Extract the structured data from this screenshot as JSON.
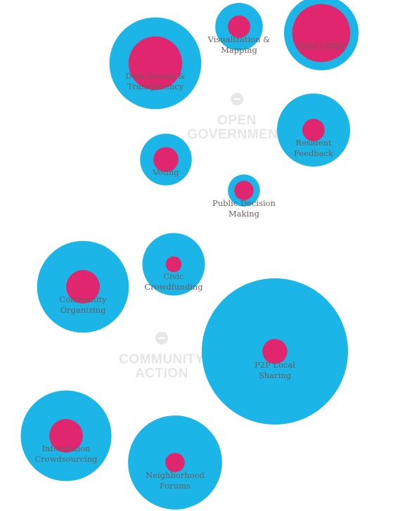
{
  "chart_data": {
    "type": "bubble",
    "colors": {
      "total": "#1bb5e8",
      "highlight": "#e0266f",
      "group_text": "#e6e6e6",
      "label_text": "#6b5d5d"
    },
    "groups": [
      {
        "name": "OPEN GOVERNMENT",
        "lines": [
          "OPEN",
          "GOVERNMENT"
        ]
      },
      {
        "name": "COMMUNITY ACTION",
        "lines": [
          "COMMUNITY",
          "ACTION"
        ]
      }
    ],
    "bubbles": [
      {
        "category": "Visualization & Mapping",
        "lines": [
          "Visualization &",
          "Mapping"
        ],
        "group": "OPEN GOVERNMENT",
        "total": 11,
        "highlight": 4
      },
      {
        "category": "Data Utility",
        "lines": [
          "Data Utility"
        ],
        "group": "OPEN GOVERNMENT",
        "total": 27,
        "highlight": 27
      },
      {
        "category": "Data Access & Transparency",
        "lines": [
          "Data Access &",
          "Transparency"
        ],
        "group": "OPEN GOVERNMENT",
        "total": 41,
        "highlight": 23
      },
      {
        "category": "Resident Feedback",
        "lines": [
          "Resident",
          "Feedback"
        ],
        "group": "OPEN GOVERNMENT",
        "total": 26,
        "highlight": 4
      },
      {
        "category": "Voting",
        "lines": [
          "Voting"
        ],
        "group": "OPEN GOVERNMENT",
        "total": 13,
        "highlight": 5
      },
      {
        "category": "Public Decision Making",
        "lines": [
          "Public Decision",
          "Making"
        ],
        "group": "OPEN GOVERNMENT",
        "total": 5,
        "highlight": 3
      },
      {
        "category": "Civic Crowdfunding",
        "lines": [
          "Civic",
          "Crowdfunding"
        ],
        "group": "COMMUNITY ACTION",
        "total": 19,
        "highlight": 2
      },
      {
        "category": "Community Organizing",
        "lines": [
          "Community",
          "Organizing"
        ],
        "group": "COMMUNITY ACTION",
        "total": 41,
        "highlight": 9
      },
      {
        "category": "P2P Local Sharing",
        "lines": [
          "P2P Local",
          "Sharing"
        ],
        "group": "COMMUNITY ACTION",
        "total": 104,
        "highlight": 5
      },
      {
        "category": "Information Crowdsourcing",
        "lines": [
          "Information",
          "Crowdsourcing"
        ],
        "group": "COMMUNITY ACTION",
        "total": 40,
        "highlight": 9
      },
      {
        "category": "Neighborhood Forums",
        "lines": [
          "Neighborhood",
          "Forums"
        ],
        "group": "COMMUNITY ACTION",
        "total": 43,
        "highlight": 3
      }
    ]
  }
}
